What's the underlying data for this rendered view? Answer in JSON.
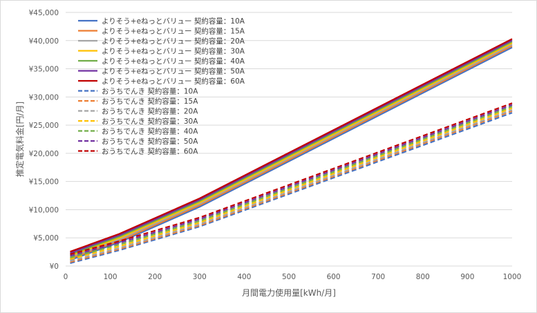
{
  "chart_data": {
    "type": "line",
    "xlabel": "月間電力使用量[kWh/月]",
    "ylabel": "推定電気料金[円/月]",
    "xlim": [
      0,
      1000
    ],
    "ylim": [
      0,
      45000
    ],
    "x_ticks": [
      "0",
      "100",
      "200",
      "300",
      "400",
      "500",
      "600",
      "700",
      "800",
      "900",
      "1000"
    ],
    "y_ticks": [
      "¥0",
      "¥5,000",
      "¥10,000",
      "¥15,000",
      "¥20,000",
      "¥25,000",
      "¥30,000",
      "¥35,000",
      "¥40,000",
      "¥45,000"
    ],
    "grid": "horizontal",
    "legend_position": "top-left",
    "x": [
      10,
      120,
      300,
      1000
    ],
    "series": [
      {
        "name": "よりそう+eねっとバリュー 契約容量：10A",
        "color": "#4472c4",
        "dash": false,
        "values": [
          1050,
          4200,
          10500,
          38800
        ]
      },
      {
        "name": "よりそう+eねっとバリュー 契約容量：15A",
        "color": "#ed7d31",
        "dash": false,
        "values": [
          1300,
          4450,
          10750,
          39050
        ]
      },
      {
        "name": "よりそう+eねっとバリュー 契約容量：20A",
        "color": "#a5a5a5",
        "dash": false,
        "values": [
          1550,
          4700,
          11000,
          39300
        ]
      },
      {
        "name": "よりそう+eねっとバリュー 契約容量：30A",
        "color": "#ffc000",
        "dash": false,
        "values": [
          1800,
          4950,
          11250,
          39550
        ]
      },
      {
        "name": "よりそう+eねっとバリュー 契約容量：40A",
        "color": "#70ad47",
        "dash": false,
        "values": [
          2050,
          5200,
          11500,
          39800
        ]
      },
      {
        "name": "よりそう+eねっとバリュー 契約容量：50A",
        "color": "#7030a0",
        "dash": false,
        "values": [
          2300,
          5450,
          11750,
          40050
        ]
      },
      {
        "name": "よりそう+eねっとバリュー 契約容量：60A",
        "color": "#c00000",
        "dash": false,
        "values": [
          2550,
          5700,
          12000,
          40300
        ]
      },
      {
        "name": "おうちでんき 契約容量：10A",
        "color": "#4472c4",
        "dash": true,
        "values": [
          500,
          2800,
          7000,
          27200
        ]
      },
      {
        "name": "おうちでんき 契約容量：15A",
        "color": "#ed7d31",
        "dash": true,
        "values": [
          700,
          3000,
          7200,
          27500
        ]
      },
      {
        "name": "おうちでんき 契約容量：20A",
        "color": "#a5a5a5",
        "dash": true,
        "values": [
          900,
          3200,
          7400,
          27700
        ]
      },
      {
        "name": "おうちでんき 契約容量：30A",
        "color": "#ffc000",
        "dash": true,
        "values": [
          1200,
          3500,
          7700,
          28000
        ]
      },
      {
        "name": "おうちでんき 契約容量：40A",
        "color": "#70ad47",
        "dash": true,
        "values": [
          1500,
          3800,
          8000,
          28300
        ]
      },
      {
        "name": "おうちでんき 契約容量：50A",
        "color": "#7030a0",
        "dash": true,
        "values": [
          1800,
          4100,
          8300,
          28600
        ]
      },
      {
        "name": "おうちでんき 契約容量：60A",
        "color": "#c00000",
        "dash": true,
        "values": [
          2100,
          4400,
          8600,
          28900
        ]
      }
    ]
  }
}
